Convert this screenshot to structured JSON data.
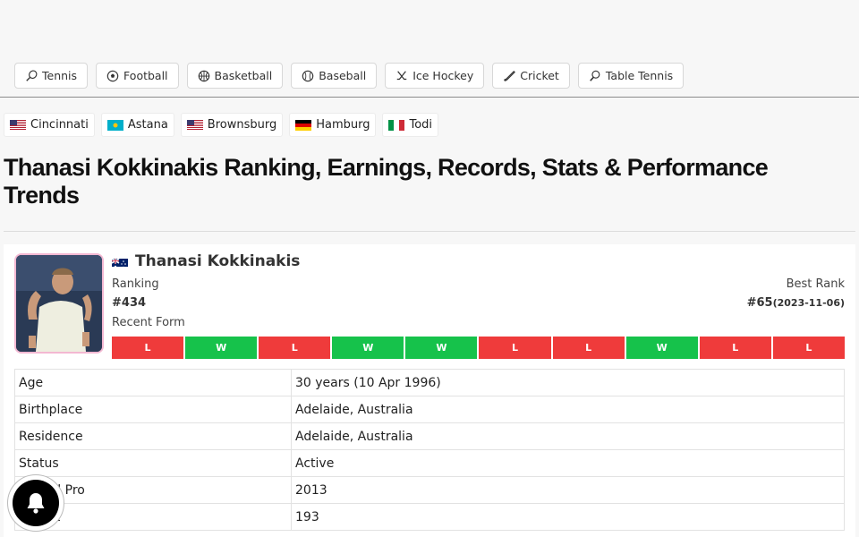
{
  "sports": [
    {
      "label": "Tennis",
      "icon": "tennis-racket-icon"
    },
    {
      "label": "Football",
      "icon": "football-icon"
    },
    {
      "label": "Basketball",
      "icon": "basketball-icon"
    },
    {
      "label": "Baseball",
      "icon": "baseball-icon"
    },
    {
      "label": "Ice Hockey",
      "icon": "hockey-sticks-icon"
    },
    {
      "label": "Cricket",
      "icon": "cricket-bat-icon"
    },
    {
      "label": "Table Tennis",
      "icon": "table-tennis-paddle-icon"
    }
  ],
  "tournaments": [
    {
      "label": "Cincinnati",
      "flag": "us-flag-icon"
    },
    {
      "label": "Astana",
      "flag": "kazakhstan-flag-icon"
    },
    {
      "label": "Brownsburg",
      "flag": "us-flag-icon"
    },
    {
      "label": "Hamburg",
      "flag": "germany-flag-icon"
    },
    {
      "label": "Todi",
      "flag": "italy-flag-icon"
    }
  ],
  "page_title": "Thanasi Kokkinakis Ranking, Earnings, Records, Stats & Performance Trends",
  "player": {
    "name": "Thanasi Kokkinakis",
    "flag": "australia-flag-icon",
    "ranking_label": "Ranking",
    "ranking_value": "#434",
    "best_rank_label": "Best Rank",
    "best_rank_value": "#65",
    "best_rank_date": "(2023-11-06)",
    "recent_form_label": "Recent Form",
    "recent_form": [
      "L",
      "W",
      "L",
      "W",
      "W",
      "L",
      "L",
      "W",
      "L",
      "L"
    ]
  },
  "info_rows": [
    {
      "key": "Age",
      "value": "30 years (10 Apr 1996)"
    },
    {
      "key": "Birthplace",
      "value": "Adelaide, Australia"
    },
    {
      "key": "Residence",
      "value": "Adelaide, Australia"
    },
    {
      "key": "Status",
      "value": "Active"
    },
    {
      "key": "Turned Pro",
      "value": "2013"
    },
    {
      "key": "Height",
      "value": "193"
    }
  ],
  "colors": {
    "loss": "#ef3b3b",
    "win": "#16c24b",
    "avatar_border": "#f3b8d2"
  },
  "notification_button": {
    "icon": "bell-icon"
  }
}
